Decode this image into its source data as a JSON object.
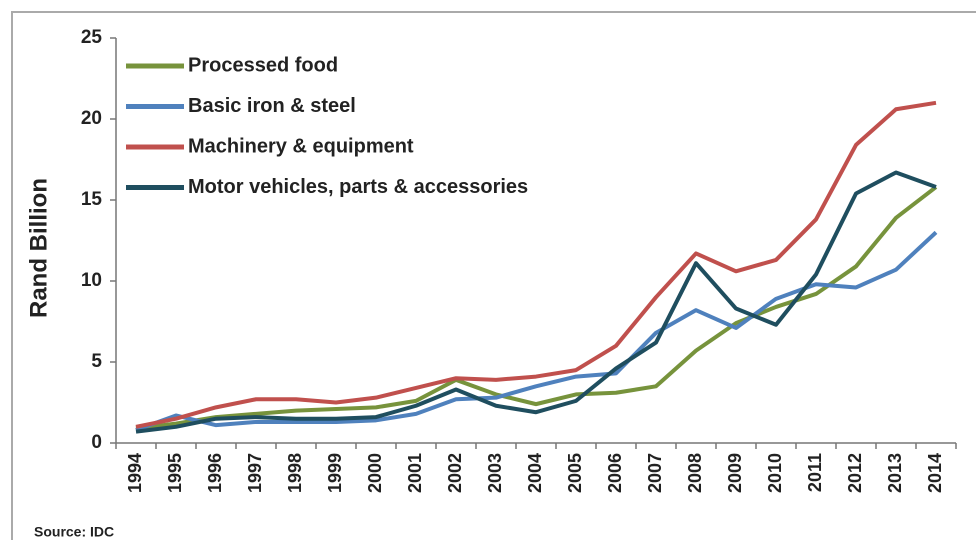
{
  "chart_data": {
    "type": "line",
    "y_label": "Rand Billion",
    "source": "Source: IDC",
    "categories": [
      "1994",
      "1995",
      "1996",
      "1997",
      "1998",
      "1999",
      "2000",
      "2001",
      "2002",
      "2003",
      "2004",
      "2005",
      "2006",
      "2007",
      "2008",
      "2009",
      "2010",
      "2011",
      "2012",
      "2013",
      "2014"
    ],
    "series": [
      {
        "name": "Processed food",
        "color": "#77933c",
        "values": [
          0.9,
          1.2,
          1.6,
          1.8,
          2.0,
          2.1,
          2.2,
          2.6,
          3.9,
          3.0,
          2.4,
          3.0,
          3.1,
          3.5,
          5.7,
          7.4,
          8.4,
          9.2,
          10.9,
          13.9,
          15.8
        ]
      },
      {
        "name": "Basic iron & steel",
        "color": "#4f81bd",
        "values": [
          0.8,
          1.7,
          1.1,
          1.3,
          1.3,
          1.3,
          1.4,
          1.8,
          2.7,
          2.8,
          3.5,
          4.1,
          4.3,
          6.8,
          8.2,
          7.1,
          8.9,
          9.8,
          9.6,
          10.7,
          13.0
        ]
      },
      {
        "name": "Machinery & equipment",
        "color": "#c0504d",
        "values": [
          1.0,
          1.5,
          2.2,
          2.7,
          2.7,
          2.5,
          2.8,
          3.4,
          4.0,
          3.9,
          4.1,
          4.5,
          6.0,
          9.0,
          11.7,
          10.6,
          11.3,
          13.8,
          18.4,
          20.6,
          21.0
        ]
      },
      {
        "name": "Motor vehicles, parts & accessories",
        "color": "#1f4e5f",
        "values": [
          0.7,
          1.0,
          1.5,
          1.6,
          1.5,
          1.5,
          1.6,
          2.3,
          3.3,
          2.3,
          1.9,
          2.6,
          4.6,
          6.2,
          11.1,
          8.3,
          7.3,
          10.4,
          15.4,
          16.7,
          15.8
        ]
      }
    ],
    "ylim": [
      0,
      25
    ],
    "yticks": [
      0,
      5,
      10,
      15,
      20,
      25
    ],
    "legend": "upper left"
  }
}
